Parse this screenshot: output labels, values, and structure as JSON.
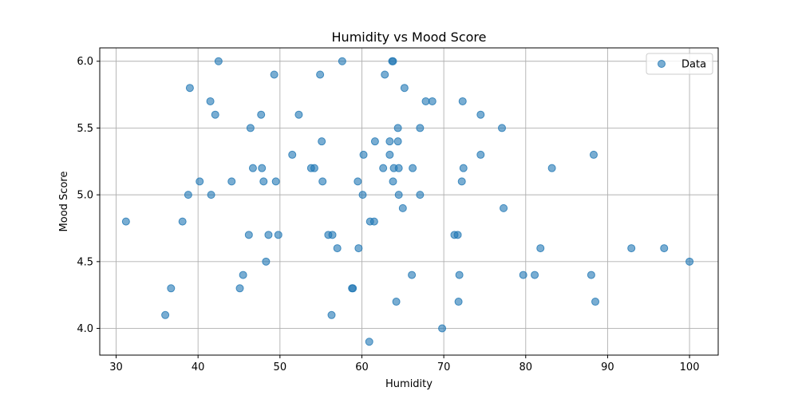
{
  "chart_data": {
    "type": "scatter",
    "title": "Humidity vs Mood Score",
    "xlabel": "Humidity",
    "ylabel": "Mood Score",
    "xlim": [
      28,
      103.5
    ],
    "ylim": [
      3.8,
      6.1
    ],
    "xticks": [
      30,
      40,
      50,
      60,
      70,
      80,
      90,
      100
    ],
    "yticks": [
      4.0,
      4.5,
      5.0,
      5.5,
      6.0
    ],
    "xtick_labels": [
      "30",
      "40",
      "50",
      "60",
      "70",
      "80",
      "90",
      "100"
    ],
    "ytick_labels": [
      "4.0",
      "4.5",
      "5.0",
      "5.5",
      "6.0"
    ],
    "grid": true,
    "legend_position": "top-right",
    "marker_color": "#1f77b4",
    "series": [
      {
        "name": "Data",
        "points": [
          [
            31.2,
            4.8
          ],
          [
            36.0,
            4.1
          ],
          [
            36.7,
            4.3
          ],
          [
            38.1,
            4.8
          ],
          [
            38.8,
            5.0
          ],
          [
            39.0,
            5.8
          ],
          [
            40.2,
            5.1
          ],
          [
            41.5,
            5.7
          ],
          [
            41.6,
            5.0
          ],
          [
            42.1,
            5.6
          ],
          [
            42.5,
            6.0
          ],
          [
            44.1,
            5.1
          ],
          [
            45.1,
            4.3
          ],
          [
            45.5,
            4.4
          ],
          [
            46.2,
            4.7
          ],
          [
            46.4,
            5.5
          ],
          [
            46.7,
            5.2
          ],
          [
            47.7,
            5.6
          ],
          [
            47.8,
            5.2
          ],
          [
            48.0,
            5.1
          ],
          [
            48.3,
            4.5
          ],
          [
            48.6,
            4.7
          ],
          [
            49.3,
            5.9
          ],
          [
            49.5,
            5.1
          ],
          [
            49.8,
            4.7
          ],
          [
            51.5,
            5.3
          ],
          [
            52.3,
            5.6
          ],
          [
            53.8,
            5.2
          ],
          [
            54.2,
            5.2
          ],
          [
            54.9,
            5.9
          ],
          [
            55.1,
            5.4
          ],
          [
            55.2,
            5.1
          ],
          [
            55.9,
            4.7
          ],
          [
            56.3,
            4.1
          ],
          [
            56.4,
            4.7
          ],
          [
            57.0,
            4.6
          ],
          [
            57.6,
            6.0
          ],
          [
            58.8,
            4.3
          ],
          [
            58.9,
            4.3
          ],
          [
            59.5,
            5.1
          ],
          [
            59.6,
            4.6
          ],
          [
            60.1,
            5.0
          ],
          [
            60.2,
            5.3
          ],
          [
            60.9,
            3.9
          ],
          [
            61.0,
            4.8
          ],
          [
            61.5,
            4.8
          ],
          [
            61.6,
            5.4
          ],
          [
            62.6,
            5.2
          ],
          [
            62.8,
            5.9
          ],
          [
            63.4,
            5.3
          ],
          [
            63.4,
            5.4
          ],
          [
            63.7,
            6.0
          ],
          [
            63.8,
            6.0
          ],
          [
            63.8,
            5.1
          ],
          [
            63.9,
            5.2
          ],
          [
            64.2,
            4.2
          ],
          [
            64.4,
            5.5
          ],
          [
            64.4,
            5.4
          ],
          [
            64.5,
            5.2
          ],
          [
            64.5,
            5.0
          ],
          [
            65.0,
            4.9
          ],
          [
            65.2,
            5.8
          ],
          [
            66.1,
            4.4
          ],
          [
            66.2,
            5.2
          ],
          [
            67.1,
            5.5
          ],
          [
            67.1,
            5.0
          ],
          [
            67.8,
            5.7
          ],
          [
            68.6,
            5.7
          ],
          [
            69.8,
            4.0
          ],
          [
            71.3,
            4.7
          ],
          [
            71.7,
            4.7
          ],
          [
            71.8,
            4.2
          ],
          [
            71.9,
            4.4
          ],
          [
            72.2,
            5.1
          ],
          [
            72.3,
            5.7
          ],
          [
            72.4,
            5.2
          ],
          [
            74.5,
            5.6
          ],
          [
            74.5,
            5.3
          ],
          [
            77.1,
            5.5
          ],
          [
            77.3,
            4.9
          ],
          [
            79.7,
            4.4
          ],
          [
            81.1,
            4.4
          ],
          [
            81.8,
            4.6
          ],
          [
            83.2,
            5.2
          ],
          [
            88.0,
            4.4
          ],
          [
            88.3,
            5.3
          ],
          [
            88.5,
            4.2
          ],
          [
            92.9,
            4.6
          ],
          [
            96.9,
            4.6
          ],
          [
            100.0,
            4.5
          ]
        ]
      }
    ]
  }
}
